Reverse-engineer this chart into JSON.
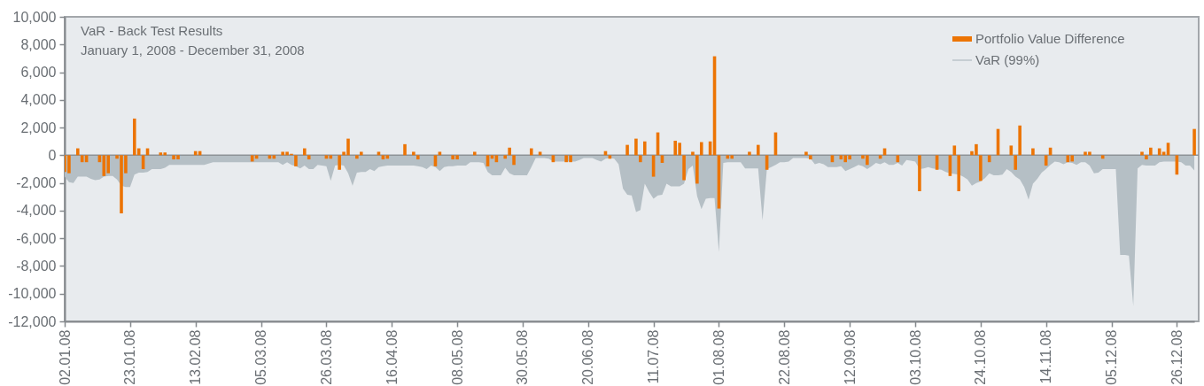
{
  "chart_data": {
    "type": "bar",
    "title": "VaR - Back Test Results",
    "subtitle": "January 1, 2008 - December 31, 2008",
    "categories": [
      "02.01.08",
      null,
      null,
      null,
      null,
      null,
      null,
      null,
      null,
      null,
      null,
      null,
      null,
      null,
      null,
      "23.01.08",
      null,
      null,
      null,
      null,
      null,
      null,
      null,
      null,
      null,
      null,
      null,
      null,
      null,
      null,
      "13.02.08",
      null,
      null,
      null,
      null,
      null,
      null,
      null,
      null,
      null,
      null,
      null,
      null,
      null,
      null,
      "05.03.08",
      null,
      null,
      null,
      null,
      null,
      null,
      null,
      null,
      null,
      null,
      null,
      null,
      null,
      null,
      "26.03.08",
      null,
      null,
      null,
      null,
      null,
      null,
      null,
      null,
      null,
      null,
      null,
      null,
      null,
      null,
      "16.04.08",
      null,
      null,
      null,
      null,
      null,
      null,
      null,
      null,
      null,
      null,
      null,
      null,
      null,
      null,
      "08.05.08",
      null,
      null,
      null,
      null,
      null,
      null,
      null,
      null,
      null,
      null,
      null,
      null,
      null,
      null,
      "30.05.08",
      null,
      null,
      null,
      null,
      null,
      null,
      null,
      null,
      null,
      null,
      null,
      null,
      null,
      null,
      "20.06.08",
      null,
      null,
      null,
      null,
      null,
      null,
      null,
      null,
      null,
      null,
      null,
      null,
      null,
      null,
      "11.07.08",
      null,
      null,
      null,
      null,
      null,
      null,
      null,
      null,
      null,
      null,
      null,
      null,
      null,
      null,
      "01.08.08",
      null,
      null,
      null,
      null,
      null,
      null,
      null,
      null,
      null,
      null,
      null,
      null,
      null,
      null,
      "22.08.08",
      null,
      null,
      null,
      null,
      null,
      null,
      null,
      null,
      null,
      null,
      null,
      null,
      null,
      null,
      "12.09.08",
      null,
      null,
      null,
      null,
      null,
      null,
      null,
      null,
      null,
      null,
      null,
      null,
      null,
      null,
      "03.10.08",
      null,
      null,
      null,
      null,
      null,
      null,
      null,
      null,
      null,
      null,
      null,
      null,
      null,
      null,
      "24.10.08",
      null,
      null,
      null,
      null,
      null,
      null,
      null,
      null,
      null,
      null,
      null,
      null,
      null,
      null,
      "14.11.08",
      null,
      null,
      null,
      null,
      null,
      null,
      null,
      null,
      null,
      null,
      null,
      null,
      null,
      null,
      "05.12.08",
      null,
      null,
      null,
      null,
      null,
      null,
      null,
      null,
      null,
      null,
      null,
      null,
      null,
      null,
      "26.12.08",
      null,
      null,
      null,
      null
    ],
    "series": [
      {
        "name": "Portfolio Value Difference",
        "color": "#ec7404",
        "values": [
          -1200,
          -1300,
          null,
          500,
          -500,
          -500,
          null,
          null,
          -500,
          -1500,
          -1300,
          null,
          -250,
          -4200,
          -1300,
          null,
          2650,
          500,
          -1000,
          500,
          null,
          null,
          200,
          200,
          null,
          -300,
          -300,
          null,
          null,
          null,
          300,
          300,
          null,
          null,
          null,
          null,
          null,
          null,
          null,
          null,
          null,
          null,
          null,
          -450,
          -250,
          null,
          null,
          -250,
          -250,
          null,
          250,
          250,
          100,
          -800,
          null,
          500,
          -300,
          null,
          null,
          null,
          -250,
          -250,
          null,
          -1050,
          250,
          1200,
          null,
          -250,
          250,
          null,
          null,
          null,
          250,
          -300,
          -250,
          null,
          null,
          null,
          800,
          null,
          250,
          -300,
          null,
          null,
          null,
          -800,
          250,
          null,
          null,
          -300,
          -300,
          null,
          null,
          null,
          250,
          null,
          null,
          -800,
          -250,
          -500,
          null,
          -250,
          550,
          -700,
          null,
          null,
          null,
          500,
          null,
          250,
          null,
          null,
          -500,
          null,
          null,
          -500,
          -500,
          null,
          null,
          null,
          null,
          null,
          null,
          null,
          300,
          -250,
          null,
          null,
          null,
          750,
          null,
          1200,
          -500,
          1000,
          null,
          -1550,
          1650,
          -550,
          null,
          null,
          1050,
          900,
          -1800,
          null,
          250,
          -2050,
          950,
          null,
          1000,
          7150,
          -3850,
          null,
          -250,
          -250,
          null,
          null,
          null,
          250,
          null,
          750,
          null,
          -1050,
          null,
          1650,
          null,
          null,
          null,
          null,
          null,
          null,
          250,
          -300,
          null,
          null,
          null,
          null,
          -500,
          null,
          -300,
          -500,
          -300,
          null,
          null,
          -250,
          -700,
          null,
          null,
          -250,
          500,
          null,
          null,
          -500,
          null,
          null,
          null,
          null,
          -2600,
          null,
          null,
          null,
          -1050,
          null,
          null,
          -1500,
          700,
          -2600,
          null,
          null,
          300,
          800,
          -1850,
          null,
          -500,
          null,
          1900,
          null,
          null,
          700,
          -1050,
          2150,
          null,
          null,
          500,
          null,
          null,
          -750,
          550,
          null,
          null,
          null,
          -500,
          -450,
          null,
          null,
          250,
          250,
          null,
          null,
          -250,
          null,
          null,
          null,
          null,
          null,
          null,
          null,
          null,
          250,
          -300,
          550,
          null,
          500,
          250,
          900,
          null,
          -1400,
          null,
          null,
          null,
          1900
        ]
      },
      {
        "name": "VaR (99%)",
        "type": "area",
        "color": "#b5bfc5",
        "values": [
          -1550,
          -1950,
          -2000,
          -1550,
          -1550,
          -1550,
          -1700,
          -1800,
          -1750,
          -1550,
          -1500,
          -1500,
          -1750,
          -2200,
          -2300,
          -2300,
          -1400,
          -1250,
          -1250,
          -1200,
          -1000,
          -1000,
          -1000,
          -900,
          -700,
          -700,
          -700,
          -700,
          -700,
          -700,
          -700,
          -700,
          -700,
          -600,
          -500,
          -500,
          -500,
          -500,
          -500,
          -500,
          -500,
          -500,
          -500,
          -500,
          -500,
          -500,
          -500,
          -500,
          -500,
          -500,
          -700,
          -500,
          -700,
          -800,
          -950,
          -750,
          -1000,
          -1000,
          -700,
          -750,
          -800,
          -1850,
          -750,
          -700,
          -750,
          -1300,
          -2200,
          -1250,
          -1200,
          -1200,
          -1000,
          -1150,
          -850,
          -800,
          -750,
          -750,
          -750,
          -750,
          -750,
          -750,
          -750,
          -800,
          -850,
          -1000,
          -750,
          -850,
          -1150,
          -850,
          -800,
          -800,
          -750,
          -750,
          -750,
          -500,
          -500,
          -500,
          -550,
          -1200,
          -1450,
          -1450,
          -1450,
          -900,
          -1300,
          -1450,
          -1450,
          -1450,
          -1450,
          -850,
          -200,
          -200,
          -200,
          -250,
          -450,
          -450,
          -450,
          -450,
          -450,
          -450,
          -350,
          -200,
          -200,
          -200,
          -350,
          -450,
          -250,
          -200,
          -250,
          -650,
          -2400,
          -2850,
          -2900,
          -4100,
          -3950,
          -2050,
          -2650,
          -3150,
          -2900,
          -2850,
          -2050,
          -2250,
          -2250,
          -2250,
          -2050,
          -1000,
          -750,
          -2950,
          -3900,
          -3150,
          -3100,
          -3100,
          -7000,
          -550,
          -500,
          -500,
          -500,
          -500,
          -950,
          -950,
          -950,
          -950,
          -4700,
          -1000,
          -850,
          -700,
          -500,
          -500,
          -450,
          -200,
          -200,
          -200,
          -200,
          -250,
          -650,
          -550,
          -650,
          -850,
          -850,
          -850,
          -800,
          -1150,
          -1000,
          -850,
          -700,
          -800,
          -1000,
          -800,
          -550,
          -650,
          -500,
          -700,
          -700,
          -550,
          -750,
          -350,
          -400,
          -450,
          -1000,
          -950,
          -850,
          -950,
          -1000,
          -1050,
          -1200,
          -1300,
          -1350,
          -1400,
          -1550,
          -1750,
          -2200,
          -2000,
          -1900,
          -1650,
          -1300,
          -1450,
          -1450,
          -1400,
          -1000,
          -1200,
          -1550,
          -1750,
          -2300,
          -3200,
          -2050,
          -1700,
          -1250,
          -1000,
          -700,
          -450,
          -500,
          -650,
          -500,
          -550,
          -700,
          -500,
          -500,
          -750,
          -1300,
          -1250,
          -1000,
          -1000,
          -1000,
          -1000,
          -7200,
          -7200,
          -7250,
          -10900,
          -950,
          -700,
          -750,
          -750,
          -750,
          -500,
          -450,
          -450,
          -450,
          -450,
          -500,
          -750,
          -750,
          -1100
        ]
      }
    ],
    "ylim": [
      -12000,
      10000
    ],
    "yticks": [
      {
        "value": -12000,
        "label": "-12,000"
      },
      {
        "value": -10000,
        "label": "-10,000"
      },
      {
        "value": -8000,
        "label": "-8,000"
      },
      {
        "value": -6000,
        "label": "-6,000"
      },
      {
        "value": -4000,
        "label": "-4,000"
      },
      {
        "value": -2000,
        "label": "-2,000"
      },
      0,
      {
        "value": 2000,
        "label": "2,000"
      },
      {
        "value": 4000,
        "label": "4,000"
      },
      {
        "value": 6000,
        "label": "6,000"
      },
      {
        "value": 8000,
        "label": "8,000"
      },
      {
        "value": 10000,
        "label": "10,000"
      }
    ],
    "ref_lines": [
      {
        "axis": "y",
        "value": 0,
        "color": "#8e9397"
      }
    ],
    "legend": "top right"
  }
}
